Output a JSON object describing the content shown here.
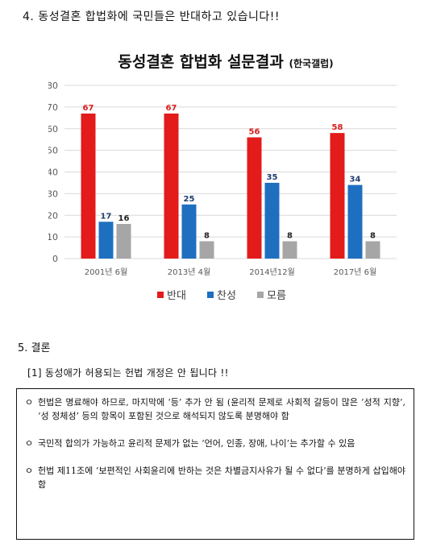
{
  "section4": {
    "heading": "4. 동성결혼 합법화에 국민들은 반대하고 있습니다!!"
  },
  "chart_data": {
    "type": "bar",
    "title": "동성결혼 합법화 설문결과",
    "subtitle": "(한국갤럽)",
    "categories": [
      "2001년 6월",
      "2013년 4월",
      "2014년12월",
      "2017년 6월"
    ],
    "series": [
      {
        "name": "반대",
        "values": [
          67,
          67,
          56,
          58
        ],
        "color": "#e31b1b",
        "label_color": "#d81b1b"
      },
      {
        "name": "찬성",
        "values": [
          17,
          25,
          35,
          34
        ],
        "color": "#1f6fc0",
        "label_color": "#1f3f6e"
      },
      {
        "name": "모름",
        "values": [
          16,
          8,
          8,
          8
        ],
        "color": "#a6a6a6",
        "label_color": "#222222"
      }
    ],
    "ylim": [
      0,
      80
    ],
    "yticks": [
      0,
      10,
      20,
      30,
      40,
      50,
      60,
      70,
      80
    ],
    "grid": true,
    "legend_position": "bottom"
  },
  "section5": {
    "heading": "5. 결론",
    "subheading": "[1] 동성애가 허용되는 헌법 개정은 안 됩니다 !!",
    "bullet_symbol": "ㅇ",
    "items": [
      "헌법은 명료해야 하므로, 마지막에 ‘등’ 추가 안 됨 (윤리적 문제로 사회적 갈등이 많은 ‘성적 지향’, ‘성 정체성’ 등의 항목이 포함된 것으로 해석되지 않도록 분명해야 함",
      "국민적 합의가 가능하고 윤리적 문제가 없는 ‘언어, 인종, 장애, 나이’는 추가할 수 있음",
      "헌법 제11조에 ‘보편적인 사회윤리에 반하는 것은 차별금지사유가 될 수 없다’를 분명하게 삽입해야 함"
    ]
  }
}
